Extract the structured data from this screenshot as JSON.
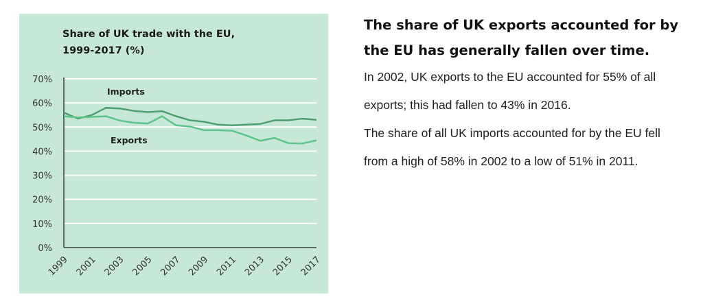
{
  "chart_data": {
    "type": "line",
    "title": "Share of UK trade with the EU, 1999-2017 (%)",
    "title_lines": [
      "Share of UK trade with the EU,",
      "1999-2017 (%)"
    ],
    "x": [
      1999,
      2000,
      2001,
      2002,
      2003,
      2004,
      2005,
      2006,
      2007,
      2008,
      2009,
      2010,
      2011,
      2012,
      2013,
      2014,
      2015,
      2016,
      2017
    ],
    "x_tick_labels": [
      "1999",
      "2001",
      "2003",
      "2005",
      "2007",
      "2009",
      "2011",
      "2013",
      "2015",
      "2017"
    ],
    "y_tick_labels": [
      "0%",
      "10%",
      "20%",
      "30%",
      "40%",
      "50%",
      "60%",
      "70%"
    ],
    "ylim": [
      0,
      70
    ],
    "grid": true,
    "background": "#c7e8d7",
    "series": [
      {
        "name": "Imports",
        "color": "#4f9e70",
        "values": [
          56,
          53.5,
          55,
          58,
          57.7,
          56.7,
          56.2,
          56.6,
          54.5,
          52.8,
          52.2,
          51,
          50.7,
          51,
          51.3,
          52.8,
          52.8,
          53.5,
          53
        ]
      },
      {
        "name": "Exports",
        "color": "#5ec48c",
        "values": [
          54.5,
          54,
          54.2,
          54.5,
          52.7,
          51.8,
          51.5,
          54.5,
          50.7,
          50.2,
          48.7,
          48.7,
          48.5,
          46.5,
          44.3,
          45.5,
          43.3,
          43.2,
          44.5
        ]
      }
    ]
  },
  "text": {
    "heading": "The share of UK exports accounted for by the EU has generally fallen over time.",
    "paragraph1": "In 2002, UK exports to the EU accounted for 55% of all exports; this had fallen to 43% in 2016.",
    "paragraph2": "The share of all UK imports accounted for by the EU fell from a high of 58% in 2002 to a low of 51% in 2011."
  }
}
